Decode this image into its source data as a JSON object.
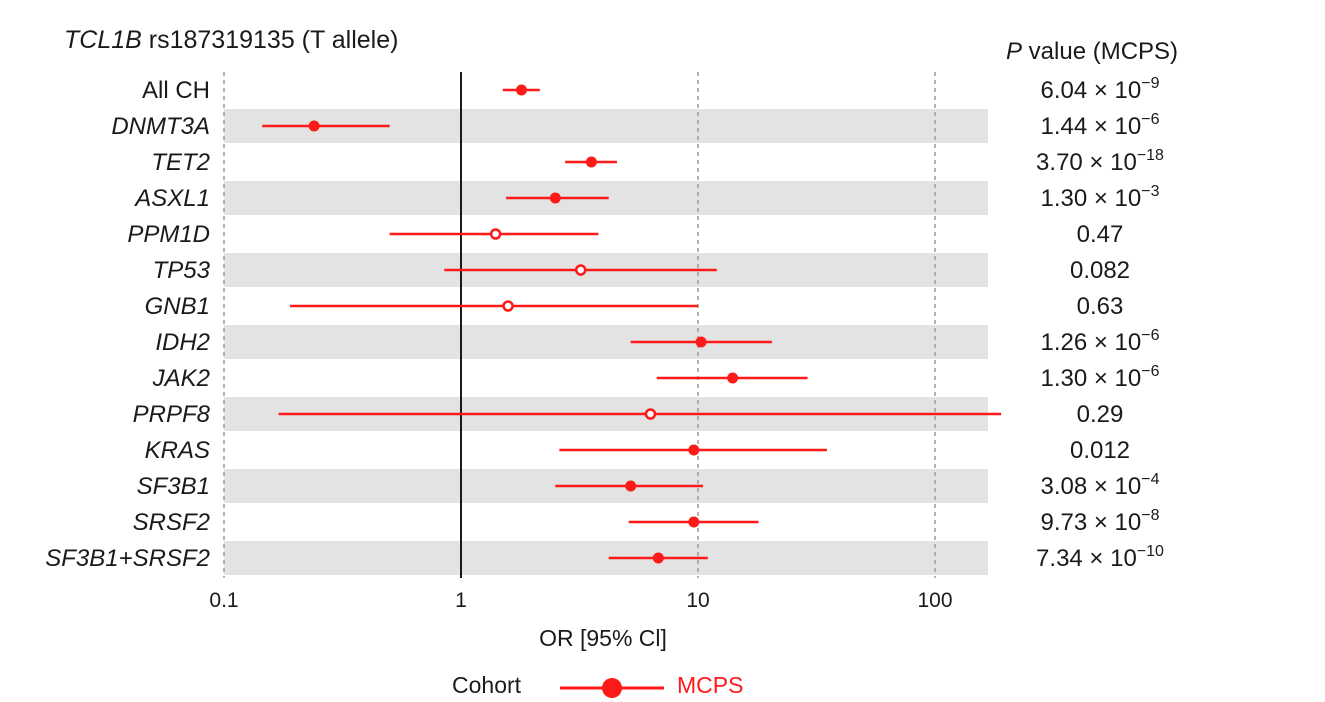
{
  "chart_data": {
    "type": "forest",
    "title_gene": "TCL1B",
    "title_rest": " rs187319135 (T allele)",
    "xlabel": "OR [95% Cl]",
    "x_scale": "log",
    "xlim": [
      0.1,
      260
    ],
    "xticks": [
      0.1,
      1,
      10,
      100
    ],
    "xtick_labels": [
      "0.1",
      "1",
      "10",
      "100"
    ],
    "reference_line": 1,
    "pvalue_header_italic": "P",
    "pvalue_header_rest": " value (MCPS)",
    "series_name": "MCPS",
    "series_color": "#ff1a1a",
    "legend_title": "Cohort",
    "rows": [
      {
        "label": "All CH",
        "italic": false,
        "or": 1.8,
        "lo": 1.5,
        "hi": 2.15,
        "significant": true,
        "p_mant": "6.04 × 10",
        "p_exp": "−9"
      },
      {
        "label": "DNMT3A",
        "italic": true,
        "or": 0.24,
        "lo": 0.145,
        "hi": 0.5,
        "significant": true,
        "p_mant": "1.44 × 10",
        "p_exp": "−6"
      },
      {
        "label": "TET2",
        "italic": true,
        "or": 3.55,
        "lo": 2.75,
        "hi": 4.55,
        "significant": true,
        "p_mant": "3.70 × 10",
        "p_exp": "−18"
      },
      {
        "label": "ASXL1",
        "italic": true,
        "or": 2.5,
        "lo": 1.55,
        "hi": 4.2,
        "significant": true,
        "p_mant": "1.30 × 10",
        "p_exp": "−3"
      },
      {
        "label": "PPM1D",
        "italic": true,
        "or": 1.4,
        "lo": 0.5,
        "hi": 3.8,
        "significant": false,
        "p_text": "0.47"
      },
      {
        "label": "TP53",
        "italic": true,
        "or": 3.2,
        "lo": 0.85,
        "hi": 12.0,
        "significant": false,
        "p_text": "0.082"
      },
      {
        "label": "GNB1",
        "italic": true,
        "or": 1.58,
        "lo": 0.19,
        "hi": 10.0,
        "significant": false,
        "p_text": "0.63"
      },
      {
        "label": "IDH2",
        "italic": true,
        "or": 10.3,
        "lo": 5.2,
        "hi": 20.5,
        "significant": true,
        "p_mant": "1.26 × 10",
        "p_exp": "−6"
      },
      {
        "label": "JAK2",
        "italic": true,
        "or": 14.0,
        "lo": 6.7,
        "hi": 29.0,
        "significant": true,
        "p_mant": "1.30 × 10",
        "p_exp": "−6"
      },
      {
        "label": "PRPF8",
        "italic": true,
        "or": 6.3,
        "lo": 0.17,
        "hi": 190.0,
        "significant": false,
        "p_text": "0.29"
      },
      {
        "label": "KRAS",
        "italic": true,
        "or": 9.6,
        "lo": 2.6,
        "hi": 35.0,
        "significant": true,
        "p_text": "0.012"
      },
      {
        "label": "SF3B1",
        "italic": true,
        "or": 5.2,
        "lo": 2.5,
        "hi": 10.5,
        "significant": true,
        "p_mant": "3.08 × 10",
        "p_exp": "−4"
      },
      {
        "label": "SRSF2",
        "italic": true,
        "or": 9.6,
        "lo": 5.1,
        "hi": 18.0,
        "significant": true,
        "p_mant": "9.73 × 10",
        "p_exp": "−8"
      },
      {
        "label": "SF3B1+SRSF2",
        "italic": true,
        "or": 6.8,
        "lo": 4.2,
        "hi": 11.0,
        "significant": true,
        "p_mant": "7.34 × 10",
        "p_exp": "−10"
      }
    ]
  }
}
